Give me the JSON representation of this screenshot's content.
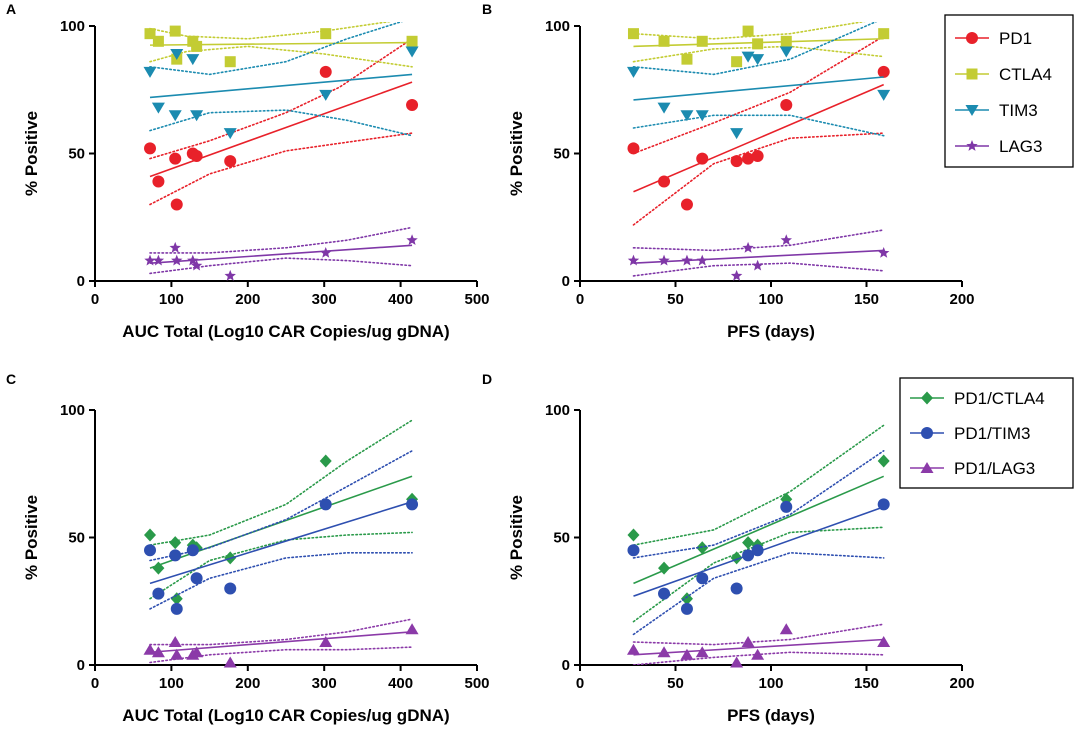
{
  "chart_data": [
    {
      "panel": "A",
      "type": "scatter",
      "xlabel": "AUC Total (Log10 CAR Copies/ug gDNA)",
      "ylabel": "% Positive",
      "xlim": [
        0,
        500
      ],
      "ylim": [
        0,
        100
      ],
      "xticks": [
        0,
        100,
        200,
        300,
        400,
        500
      ],
      "yticks": [
        0,
        50,
        100
      ],
      "series": [
        {
          "name": "PD1",
          "marker": "circle",
          "color": "#e8212a",
          "x": [
            72,
            83,
            105,
            107,
            128,
            133,
            177,
            302,
            415
          ],
          "y": [
            52,
            39,
            48,
            30,
            50,
            49,
            47,
            82,
            69
          ],
          "fit": {
            "x": [
              72,
              415
            ],
            "y": [
              41,
              78
            ]
          },
          "ci_upper": [
            [
              72,
              48
            ],
            [
              150,
              55
            ],
            [
              250,
              66
            ],
            [
              320,
              76
            ],
            [
              415,
              95
            ]
          ],
          "ci_lower": [
            [
              72,
              30
            ],
            [
              150,
              42
            ],
            [
              250,
              51
            ],
            [
              320,
              54
            ],
            [
              415,
              58
            ]
          ]
        },
        {
          "name": "CTLA4",
          "marker": "square",
          "color": "#c3cc33",
          "x": [
            72,
            83,
            105,
            107,
            128,
            133,
            177,
            302,
            415
          ],
          "y": [
            97,
            94,
            98,
            87,
            94,
            92,
            86,
            97,
            94
          ],
          "fit": {
            "x": [
              72,
              415
            ],
            "y": [
              92.5,
              93.5
            ]
          },
          "ci_upper": [
            [
              72,
              99
            ],
            [
              120,
              96
            ],
            [
              200,
              95
            ],
            [
              300,
              98
            ],
            [
              415,
              103
            ]
          ],
          "ci_lower": [
            [
              72,
              86
            ],
            [
              120,
              90
            ],
            [
              200,
              92
            ],
            [
              300,
              89
            ],
            [
              415,
              84
            ]
          ]
        },
        {
          "name": "TIM3",
          "marker": "triangle-down",
          "color": "#1b8bb0",
          "x": [
            72,
            83,
            105,
            107,
            128,
            133,
            177,
            302,
            415
          ],
          "y": [
            82,
            68,
            65,
            89,
            87,
            65,
            58,
            73,
            90
          ],
          "fit": {
            "x": [
              72,
              415
            ],
            "y": [
              72,
              81
            ]
          },
          "ci_upper": [
            [
              72,
              84
            ],
            [
              150,
              81
            ],
            [
              250,
              86
            ],
            [
              330,
              95
            ],
            [
              415,
              103
            ]
          ],
          "ci_lower": [
            [
              72,
              59
            ],
            [
              150,
              66
            ],
            [
              250,
              67
            ],
            [
              330,
              63
            ],
            [
              415,
              57
            ]
          ]
        },
        {
          "name": "LAG3",
          "marker": "star",
          "color": "#7f37a7",
          "x": [
            72,
            83,
            105,
            107,
            128,
            133,
            177,
            302,
            415
          ],
          "y": [
            8,
            8,
            13,
            8,
            8,
            6,
            2,
            11,
            16
          ],
          "fit": {
            "x": [
              72,
              415
            ],
            "y": [
              7,
              14
            ]
          },
          "ci_upper": [
            [
              72,
              11
            ],
            [
              150,
              11
            ],
            [
              250,
              13
            ],
            [
              330,
              16
            ],
            [
              415,
              21
            ]
          ],
          "ci_lower": [
            [
              72,
              3
            ],
            [
              150,
              6
            ],
            [
              250,
              9
            ],
            [
              330,
              8
            ],
            [
              415,
              6
            ]
          ]
        }
      ]
    },
    {
      "panel": "B",
      "type": "scatter",
      "xlabel": "PFS (days)",
      "ylabel": "% Positive",
      "xlim": [
        0,
        200
      ],
      "ylim": [
        0,
        100
      ],
      "xticks": [
        0,
        50,
        100,
        150,
        200
      ],
      "yticks": [
        0,
        50,
        100
      ],
      "series": [
        {
          "name": "PD1",
          "marker": "circle",
          "color": "#e8212a",
          "x": [
            28,
            44,
            56,
            64,
            82,
            88,
            93,
            108,
            159
          ],
          "y": [
            52,
            39,
            30,
            48,
            47,
            48,
            49,
            69,
            82
          ],
          "fit": {
            "x": [
              28,
              159
            ],
            "y": [
              35,
              77
            ]
          },
          "ci_upper": [
            [
              28,
              50
            ],
            [
              70,
              62
            ],
            [
              110,
              74
            ],
            [
              159,
              96
            ]
          ],
          "ci_lower": [
            [
              28,
              22
            ],
            [
              70,
              46
            ],
            [
              110,
              56
            ],
            [
              159,
              58
            ]
          ]
        },
        {
          "name": "CTLA4",
          "marker": "square",
          "color": "#c3cc33",
          "x": [
            28,
            44,
            56,
            64,
            82,
            88,
            93,
            108,
            159
          ],
          "y": [
            97,
            94,
            87,
            94,
            86,
            98,
            93,
            94,
            97
          ],
          "fit": {
            "x": [
              28,
              159
            ],
            "y": [
              92,
              95
            ]
          },
          "ci_upper": [
            [
              28,
              97
            ],
            [
              70,
              95
            ],
            [
              110,
              97
            ],
            [
              159,
              103
            ]
          ],
          "ci_lower": [
            [
              28,
              86
            ],
            [
              70,
              91
            ],
            [
              110,
              92
            ],
            [
              159,
              88
            ]
          ]
        },
        {
          "name": "TIM3",
          "marker": "triangle-down",
          "color": "#1b8bb0",
          "x": [
            28,
            44,
            56,
            64,
            82,
            88,
            93,
            108,
            159
          ],
          "y": [
            82,
            68,
            65,
            65,
            58,
            88,
            87,
            90,
            73
          ],
          "fit": {
            "x": [
              28,
              159
            ],
            "y": [
              71,
              80
            ]
          },
          "ci_upper": [
            [
              28,
              84
            ],
            [
              70,
              81
            ],
            [
              110,
              87
            ],
            [
              159,
              103
            ]
          ],
          "ci_lower": [
            [
              28,
              60
            ],
            [
              70,
              65
            ],
            [
              110,
              65
            ],
            [
              159,
              57
            ]
          ]
        },
        {
          "name": "LAG3",
          "marker": "star",
          "color": "#7f37a7",
          "x": [
            28,
            44,
            56,
            64,
            82,
            88,
            93,
            108,
            159
          ],
          "y": [
            8,
            8,
            8,
            8,
            2,
            13,
            6,
            16,
            11
          ],
          "fit": {
            "x": [
              28,
              159
            ],
            "y": [
              7,
              12
            ]
          },
          "ci_upper": [
            [
              28,
              13
            ],
            [
              70,
              12
            ],
            [
              110,
              14
            ],
            [
              159,
              20
            ]
          ],
          "ci_lower": [
            [
              28,
              2
            ],
            [
              70,
              6
            ],
            [
              110,
              7
            ],
            [
              159,
              4
            ]
          ]
        }
      ]
    },
    {
      "panel": "C",
      "type": "scatter",
      "xlabel": "AUC Total (Log10 CAR Copies/ug gDNA)",
      "ylabel": "% Positive",
      "xlim": [
        0,
        500
      ],
      "ylim": [
        0,
        100
      ],
      "xticks": [
        0,
        100,
        200,
        300,
        400,
        500
      ],
      "yticks": [
        0,
        50,
        100
      ],
      "series": [
        {
          "name": "PD1/CTLA4",
          "marker": "diamond",
          "color": "#2a9a4a",
          "x": [
            72,
            83,
            105,
            107,
            128,
            133,
            177,
            302,
            415
          ],
          "y": [
            51,
            38,
            48,
            26,
            47,
            46,
            42,
            80,
            65
          ],
          "fit": {
            "x": [
              72,
              415
            ],
            "y": [
              38,
              74
            ]
          },
          "ci_upper": [
            [
              72,
              47
            ],
            [
              150,
              51
            ],
            [
              250,
              63
            ],
            [
              330,
              80
            ],
            [
              415,
              96
            ]
          ],
          "ci_lower": [
            [
              72,
              26
            ],
            [
              150,
              41
            ],
            [
              250,
              49
            ],
            [
              330,
              51
            ],
            [
              415,
              52
            ]
          ]
        },
        {
          "name": "PD1/TIM3",
          "marker": "circle",
          "color": "#2e4fb0",
          "x": [
            72,
            83,
            105,
            107,
            128,
            133,
            177,
            302,
            415
          ],
          "y": [
            45,
            28,
            43,
            22,
            45,
            34,
            30,
            63,
            63
          ],
          "fit": {
            "x": [
              72,
              415
            ],
            "y": [
              32,
              64
            ]
          },
          "ci_upper": [
            [
              72,
              41
            ],
            [
              150,
              46
            ],
            [
              250,
              57
            ],
            [
              330,
              70
            ],
            [
              415,
              84
            ]
          ],
          "ci_lower": [
            [
              72,
              22
            ],
            [
              150,
              34
            ],
            [
              250,
              42
            ],
            [
              330,
              44
            ],
            [
              415,
              44
            ]
          ]
        },
        {
          "name": "PD1/LAG3",
          "marker": "triangle",
          "color": "#8b3aa8",
          "x": [
            72,
            83,
            105,
            107,
            128,
            133,
            177,
            302,
            415
          ],
          "y": [
            6,
            5,
            9,
            4,
            4,
            5,
            1,
            9,
            14
          ],
          "fit": {
            "x": [
              72,
              415
            ],
            "y": [
              5,
              13
            ]
          },
          "ci_upper": [
            [
              72,
              8
            ],
            [
              150,
              8
            ],
            [
              250,
              10
            ],
            [
              330,
              13
            ],
            [
              415,
              18
            ]
          ],
          "ci_lower": [
            [
              72,
              1
            ],
            [
              150,
              4
            ],
            [
              250,
              6
            ],
            [
              330,
              6
            ],
            [
              415,
              7
            ]
          ]
        }
      ]
    },
    {
      "panel": "D",
      "type": "scatter",
      "xlabel": "PFS (days)",
      "ylabel": "% Positive",
      "xlim": [
        0,
        200
      ],
      "ylim": [
        0,
        100
      ],
      "xticks": [
        0,
        50,
        100,
        150,
        200
      ],
      "yticks": [
        0,
        50,
        100
      ],
      "series": [
        {
          "name": "PD1/CTLA4",
          "marker": "diamond",
          "color": "#2a9a4a",
          "x": [
            28,
            44,
            56,
            64,
            82,
            88,
            93,
            108,
            159
          ],
          "y": [
            51,
            38,
            26,
            46,
            42,
            48,
            47,
            65,
            80
          ],
          "fit": {
            "x": [
              28,
              159
            ],
            "y": [
              32,
              74
            ]
          },
          "ci_upper": [
            [
              28,
              47
            ],
            [
              70,
              53
            ],
            [
              110,
              68
            ],
            [
              159,
              94
            ]
          ],
          "ci_lower": [
            [
              28,
              17
            ],
            [
              70,
              40
            ],
            [
              110,
              52
            ],
            [
              159,
              54
            ]
          ]
        },
        {
          "name": "PD1/TIM3",
          "marker": "circle",
          "color": "#2e4fb0",
          "x": [
            28,
            44,
            56,
            64,
            82,
            88,
            93,
            108,
            159
          ],
          "y": [
            45,
            28,
            22,
            34,
            30,
            43,
            45,
            62,
            63
          ],
          "fit": {
            "x": [
              28,
              159
            ],
            "y": [
              27,
              62
            ]
          },
          "ci_upper": [
            [
              28,
              42
            ],
            [
              70,
              47
            ],
            [
              110,
              59
            ],
            [
              159,
              84
            ]
          ],
          "ci_lower": [
            [
              28,
              12
            ],
            [
              70,
              34
            ],
            [
              110,
              44
            ],
            [
              159,
              42
            ]
          ]
        },
        {
          "name": "PD1/LAG3",
          "marker": "triangle",
          "color": "#8b3aa8",
          "x": [
            28,
            44,
            56,
            64,
            82,
            88,
            93,
            108,
            159
          ],
          "y": [
            6,
            5,
            4,
            5,
            1,
            9,
            4,
            14,
            9
          ],
          "fit": {
            "x": [
              28,
              159
            ],
            "y": [
              4,
              10
            ]
          },
          "ci_upper": [
            [
              28,
              9
            ],
            [
              70,
              8
            ],
            [
              110,
              10
            ],
            [
              159,
              16
            ]
          ],
          "ci_lower": [
            [
              28,
              0
            ],
            [
              70,
              3
            ],
            [
              110,
              5
            ],
            [
              159,
              4
            ]
          ]
        }
      ]
    }
  ],
  "legends": {
    "top": [
      "PD1",
      "CTLA4",
      "TIM3",
      "LAG3"
    ],
    "bottom": [
      "PD1/CTLA4",
      "PD1/TIM3",
      "PD1/LAG3"
    ]
  }
}
